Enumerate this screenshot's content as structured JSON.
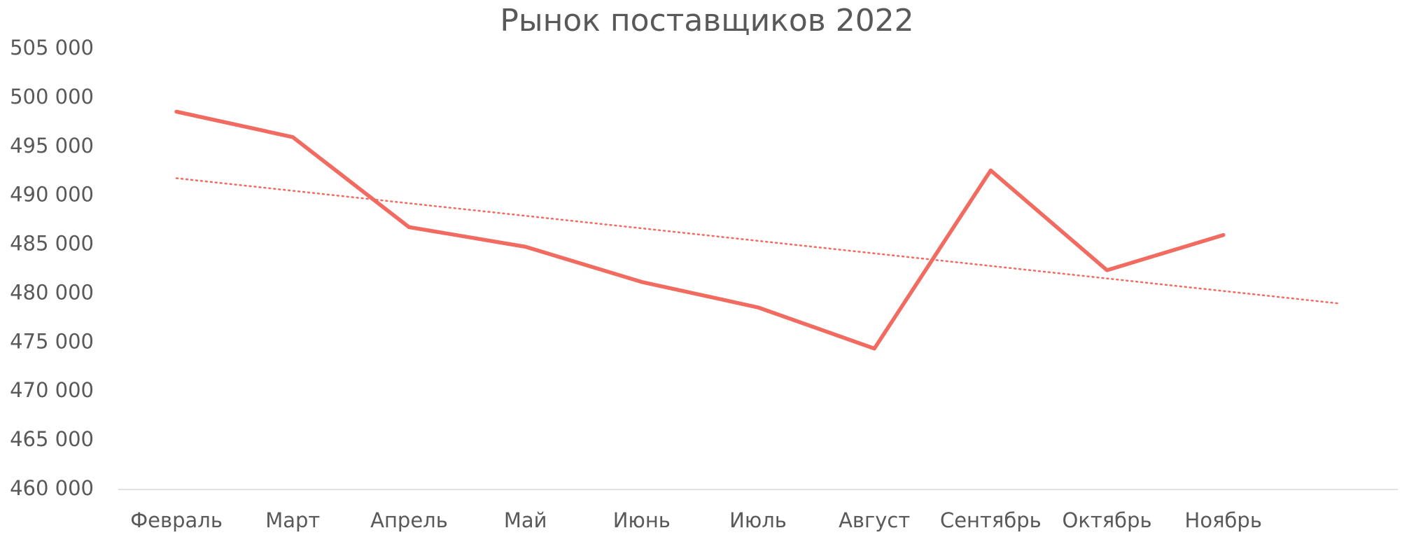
{
  "chart_data": {
    "type": "line",
    "title": "Рынок поставщиков 2022",
    "categories": [
      "Февраль",
      "Март",
      "Апрель",
      "Май",
      "Июнь",
      "Июль",
      "Август",
      "Сентябрь",
      "Октябрь",
      "Ноябрь",
      null
    ],
    "series": [
      {
        "color": "#f26b61",
        "values": [
          498600,
          496000,
          486800,
          484800,
          481200,
          478600,
          474400,
          492600,
          482400,
          486000,
          null
        ]
      }
    ],
    "trendline": {
      "from": 491800,
      "to": 479000,
      "color": "#f26b61",
      "style": "dotted"
    },
    "ylim": [
      460000,
      505000
    ],
    "yticks": [
      {
        "value": 460000,
        "label": "460 000"
      },
      {
        "value": 465000,
        "label": "465 000"
      },
      {
        "value": 470000,
        "label": "470 000"
      },
      {
        "value": 475000,
        "label": "475 000"
      },
      {
        "value": 480000,
        "label": "480 000"
      },
      {
        "value": 485000,
        "label": "485 000"
      },
      {
        "value": 490000,
        "label": "490 000"
      },
      {
        "value": 495000,
        "label": "495 000"
      },
      {
        "value": 500000,
        "label": "500 000"
      },
      {
        "value": 505000,
        "label": "505 000"
      }
    ],
    "grid": false
  }
}
